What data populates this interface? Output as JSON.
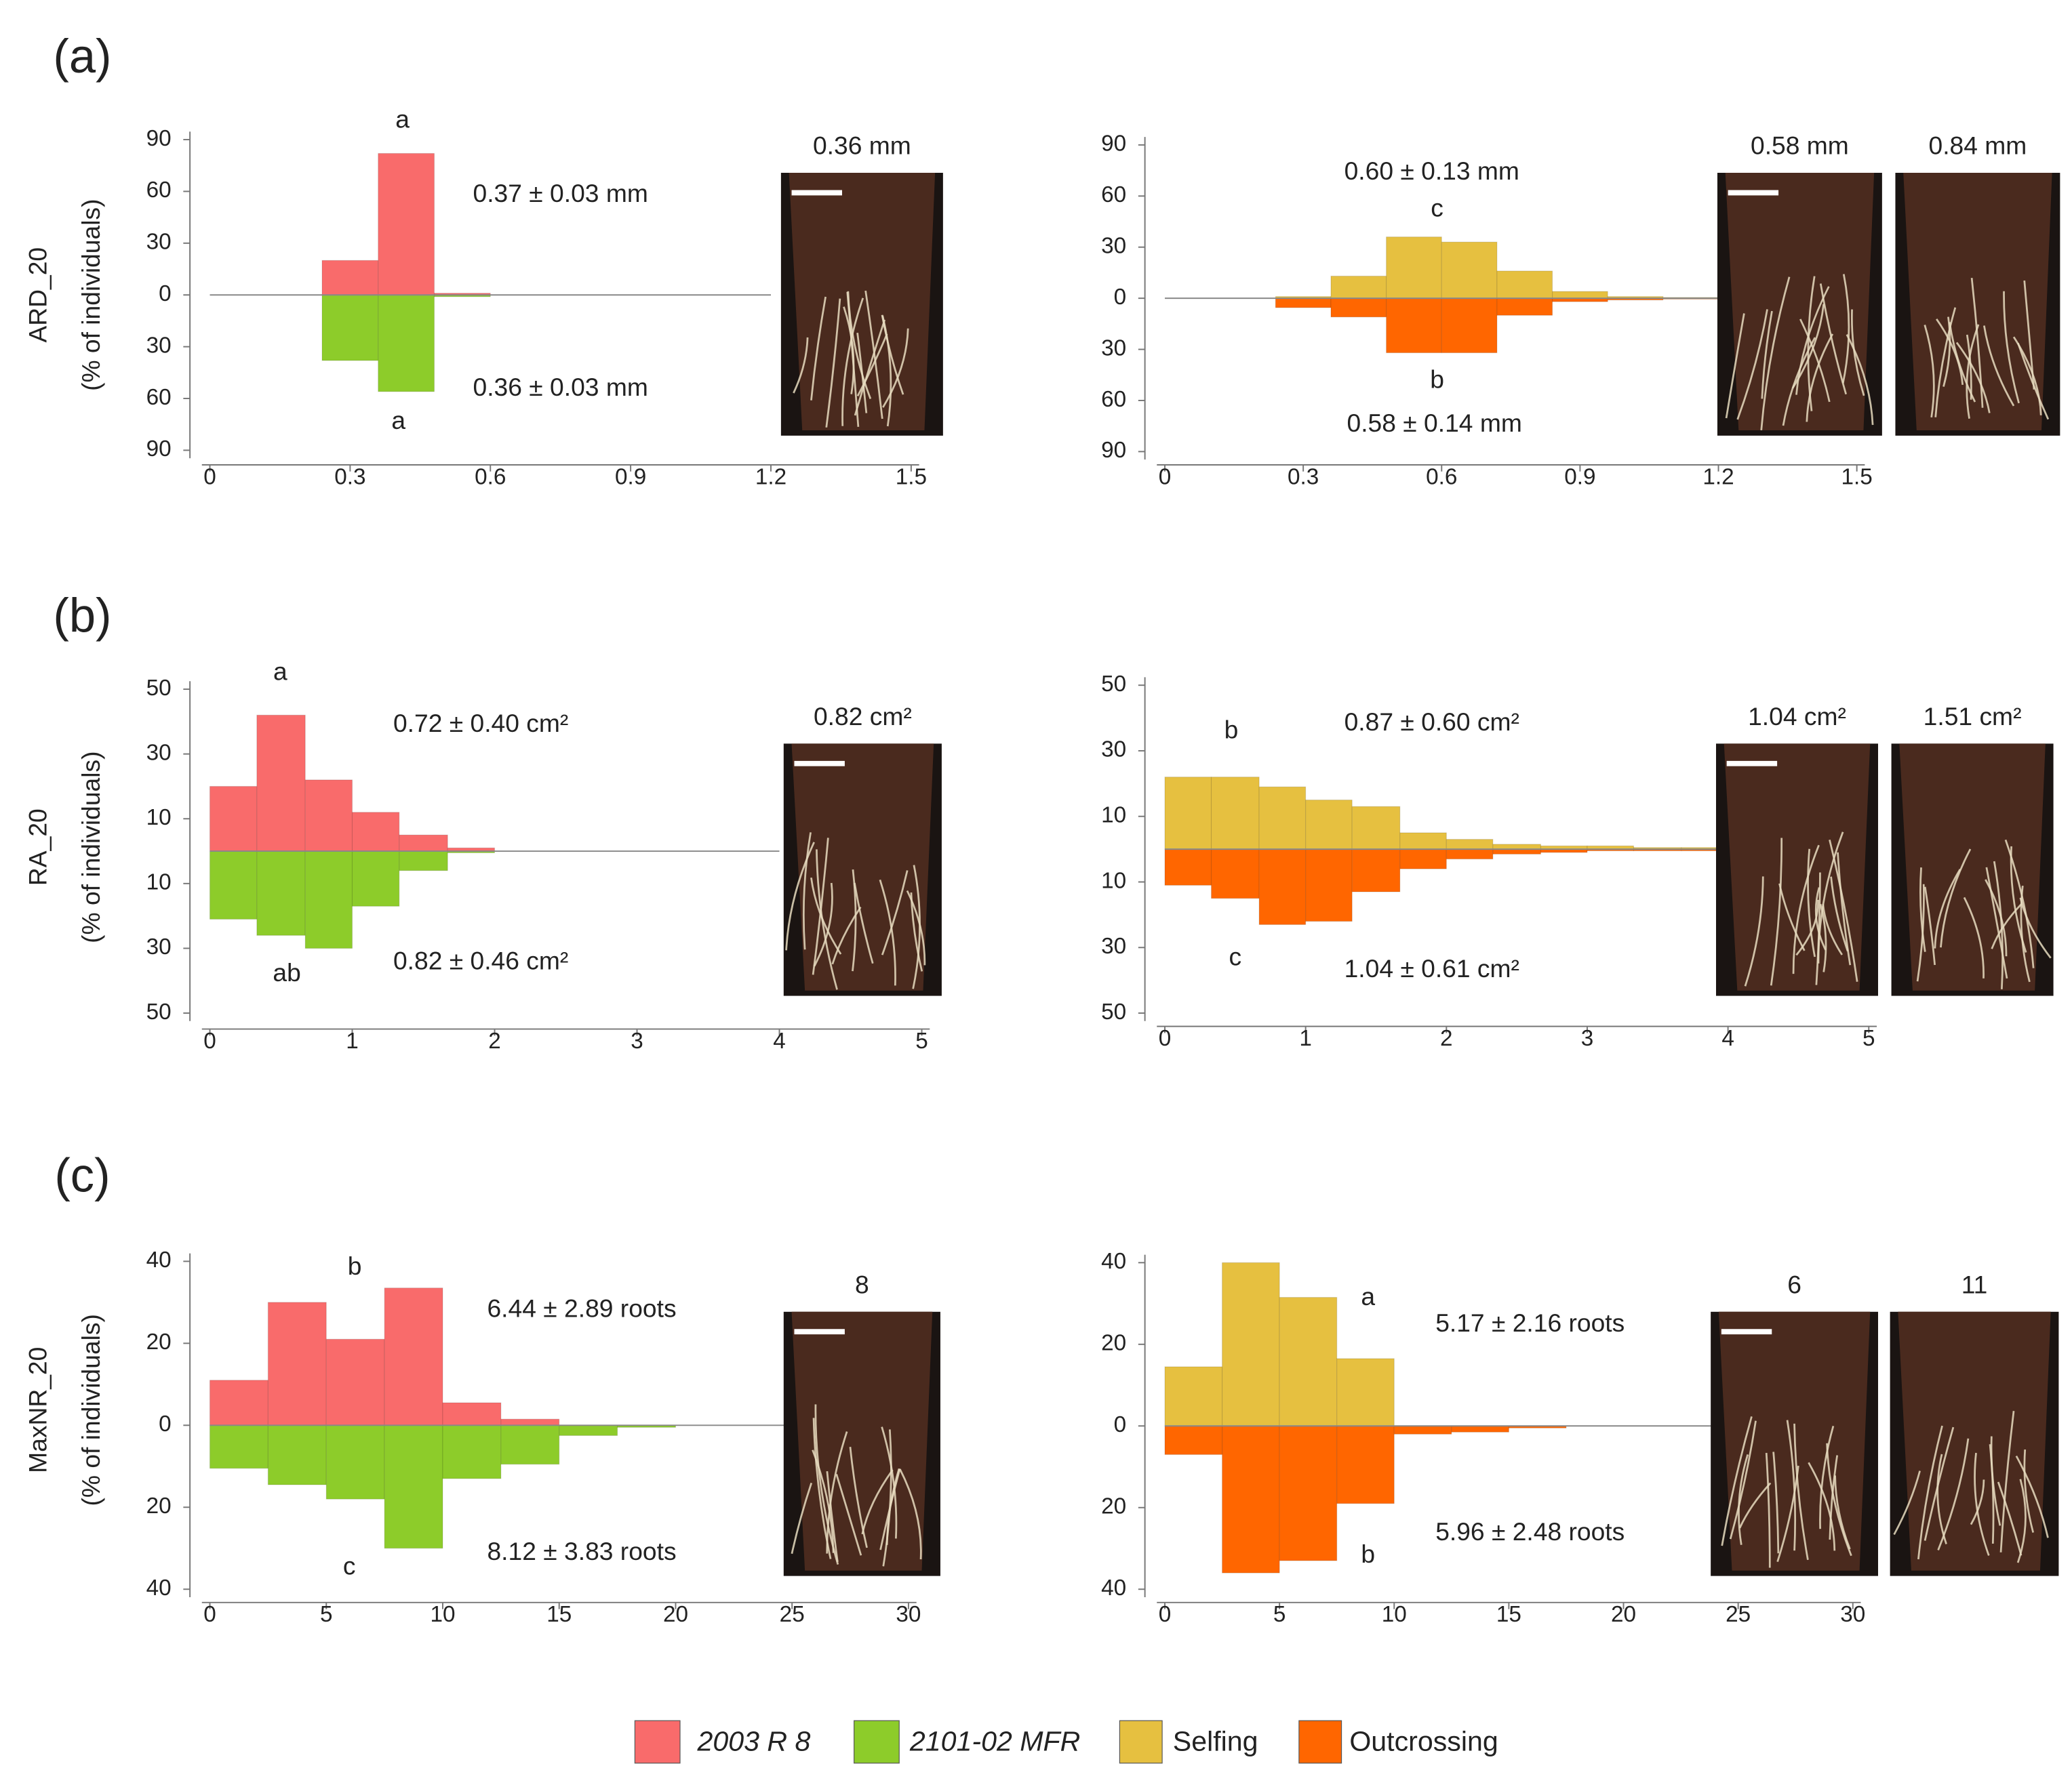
{
  "chart_data": [
    {
      "type": "histogram",
      "panel": "(a)",
      "ylabel": [
        "ARD_20",
        "(% of individuals)"
      ],
      "bins": [
        0,
        0.12,
        0.24,
        0.36,
        0.48,
        0.6,
        0.72,
        0.84,
        0.96,
        1.08,
        1.2
      ],
      "series": [
        {
          "name": "2003 R 8",
          "color": "#f96b6b",
          "values": [
            0,
            0,
            20,
            82,
            1,
            0,
            0,
            0,
            0,
            0
          ]
        },
        {
          "name": "2101-02 MFR",
          "color": "#8dcc2a",
          "values": [
            0,
            0,
            -38,
            -56,
            -1,
            0,
            0,
            0,
            0,
            0
          ]
        }
      ],
      "xlim": [
        0,
        1.5
      ],
      "xticks": [
        0,
        0.3,
        0.6,
        0.9,
        1.2,
        1.5
      ],
      "ylim": [
        -90,
        90
      ],
      "yticks": [
        90,
        60,
        30,
        0,
        {
          "value": -30,
          "label": "30"
        },
        {
          "value": -60,
          "label": "60"
        },
        {
          "value": -90,
          "label": "90"
        }
      ],
      "annotations": [
        "a",
        "0.37 ± 0.03 mm",
        "0.36 ± 0.03 mm",
        "a"
      ],
      "images": [
        {
          "label": "0.36 mm"
        }
      ]
    },
    {
      "type": "histogram",
      "bins": [
        0,
        0.12,
        0.24,
        0.36,
        0.48,
        0.6,
        0.72,
        0.84,
        0.96,
        1.08,
        1.2
      ],
      "series": [
        {
          "name": "Selfing",
          "color": "#e6c040",
          "values": [
            0,
            0,
            1,
            13,
            36,
            33,
            16,
            4,
            1,
            0.5
          ]
        },
        {
          "name": "Outcrossing",
          "color": "#ff6600",
          "values": [
            0,
            0,
            -5.5,
            -11,
            -32,
            -32,
            -10,
            -2,
            -1,
            -0.5
          ]
        }
      ],
      "xlim": [
        0,
        1.5
      ],
      "xticks": [
        0,
        0.3,
        0.6,
        0.9,
        1.2,
        1.5
      ],
      "ylim": [
        -90,
        90
      ],
      "yticks": [
        90,
        60,
        30,
        0,
        {
          "value": -30,
          "label": "30"
        },
        {
          "value": -60,
          "label": "60"
        },
        {
          "value": -90,
          "label": "90"
        }
      ],
      "annotations": [
        "0.60 ± 0.13 mm",
        "c",
        "b",
        "0.58 ± 0.14 mm"
      ],
      "images": [
        {
          "label": "0.58 mm"
        },
        {
          "label": "0.84 mm"
        }
      ]
    },
    {
      "type": "histogram",
      "panel": "(b)",
      "ylabel": [
        "RA_20",
        "(% of individuals)"
      ],
      "bins": [
        0,
        0.33,
        0.67,
        1,
        1.33,
        1.67,
        2,
        2.33,
        2.67,
        3,
        3.33,
        3.67,
        4
      ],
      "series": [
        {
          "name": "2003 R 8",
          "color": "#f96b6b",
          "values": [
            20,
            42,
            22,
            12,
            5,
            1,
            0,
            0,
            0,
            0,
            0,
            0
          ]
        },
        {
          "name": "2101-02 MFR",
          "color": "#8dcc2a",
          "values": [
            -21,
            -26,
            -30,
            -17,
            -6,
            -0.5,
            0,
            0,
            0,
            0,
            0,
            0
          ]
        }
      ],
      "xlim": [
        0,
        5
      ],
      "xticks": [
        0,
        1,
        2,
        3,
        4,
        5
      ],
      "ylim": [
        -50,
        50
      ],
      "yticks": [
        50,
        30,
        10,
        {
          "value": -10,
          "label": "10"
        },
        {
          "value": -30,
          "label": "30"
        },
        {
          "value": -50,
          "label": "50"
        }
      ],
      "annotations": [
        "a",
        "0.72 ± 0.40 cm²",
        "0.82 ± 0.46 cm²",
        "ab"
      ],
      "images": [
        {
          "label": "0.82 cm²"
        }
      ]
    },
    {
      "type": "histogram",
      "bins": [
        0,
        0.33,
        0.67,
        1,
        1.33,
        1.67,
        2,
        2.33,
        2.67,
        3,
        3.33,
        3.67,
        4
      ],
      "series": [
        {
          "name": "Selfing",
          "color": "#e6c040",
          "values": [
            22,
            22,
            19,
            15,
            13,
            5,
            3,
            1.5,
            1,
            1,
            0.5,
            0.5
          ]
        },
        {
          "name": "Outcrossing",
          "color": "#ff6600",
          "values": [
            -11,
            -15,
            -23,
            -22,
            -13,
            -6,
            -3,
            -1.5,
            -1,
            -0.5,
            -0.5,
            -0.5
          ]
        }
      ],
      "xlim": [
        0,
        5
      ],
      "xticks": [
        0,
        1,
        2,
        3,
        4,
        5
      ],
      "ylim": [
        -50,
        50
      ],
      "yticks": [
        50,
        30,
        10,
        {
          "value": -10,
          "label": "10"
        },
        {
          "value": -30,
          "label": "30"
        },
        {
          "value": -50,
          "label": "50"
        }
      ],
      "annotations": [
        "b",
        "0.87 ± 0.60 cm²",
        "c",
        "1.04 ± 0.61 cm²"
      ],
      "images": [
        {
          "label": "1.04 cm²"
        },
        {
          "label": "1.51 cm²"
        }
      ]
    },
    {
      "type": "histogram",
      "panel": "(c)",
      "ylabel": [
        "MaxNR_20",
        "(% of individuals)"
      ],
      "bins": [
        0,
        2.5,
        5,
        7.5,
        10,
        12.5,
        15,
        17.5,
        20,
        22.5,
        25
      ],
      "series": [
        {
          "name": "2003 R 8",
          "color": "#f96b6b",
          "values": [
            11,
            30,
            21,
            33.5,
            5.5,
            1.5,
            0,
            0,
            0,
            0
          ]
        },
        {
          "name": "2101-02 MFR",
          "color": "#8dcc2a",
          "values": [
            -10.5,
            -14.5,
            -18,
            -30,
            -13,
            -9.5,
            -2.5,
            -0.5,
            0,
            0
          ]
        }
      ],
      "xlim": [
        0,
        30
      ],
      "xticks": [
        0,
        5,
        10,
        15,
        20,
        25,
        30
      ],
      "ylim": [
        -40,
        40
      ],
      "yticks": [
        40,
        20,
        0,
        {
          "value": -20,
          "label": "20"
        },
        {
          "value": -40,
          "label": "40"
        }
      ],
      "annotations": [
        "b",
        "6.44 ± 2.89 roots",
        "8.12 ± 3.83 roots",
        "c"
      ],
      "images": [
        {
          "label": "8"
        }
      ]
    },
    {
      "type": "histogram",
      "bins": [
        0,
        2.5,
        5,
        7.5,
        10,
        12.5,
        15,
        17.5,
        20,
        22.5,
        25
      ],
      "series": [
        {
          "name": "Selfing",
          "color": "#e6c040",
          "values": [
            14.5,
            40,
            31.5,
            16.5,
            0,
            0,
            0,
            0,
            0,
            0
          ]
        },
        {
          "name": "Outcrossing",
          "color": "#ff6600",
          "values": [
            -7,
            -36,
            -33,
            -19,
            -2,
            -1.5,
            -0.5,
            0,
            0,
            0
          ]
        }
      ],
      "xlim": [
        0,
        30
      ],
      "xticks": [
        0,
        5,
        10,
        15,
        20,
        25,
        30
      ],
      "ylim": [
        -40,
        40
      ],
      "yticks": [
        40,
        20,
        0,
        {
          "value": -20,
          "label": "20"
        },
        {
          "value": -40,
          "label": "40"
        }
      ],
      "annotations": [
        "a",
        "5.17 ± 2.16 roots",
        "5.96 ± 2.48 roots",
        "b"
      ],
      "images": [
        {
          "label": "6"
        },
        {
          "label": "11"
        }
      ]
    }
  ]
}
